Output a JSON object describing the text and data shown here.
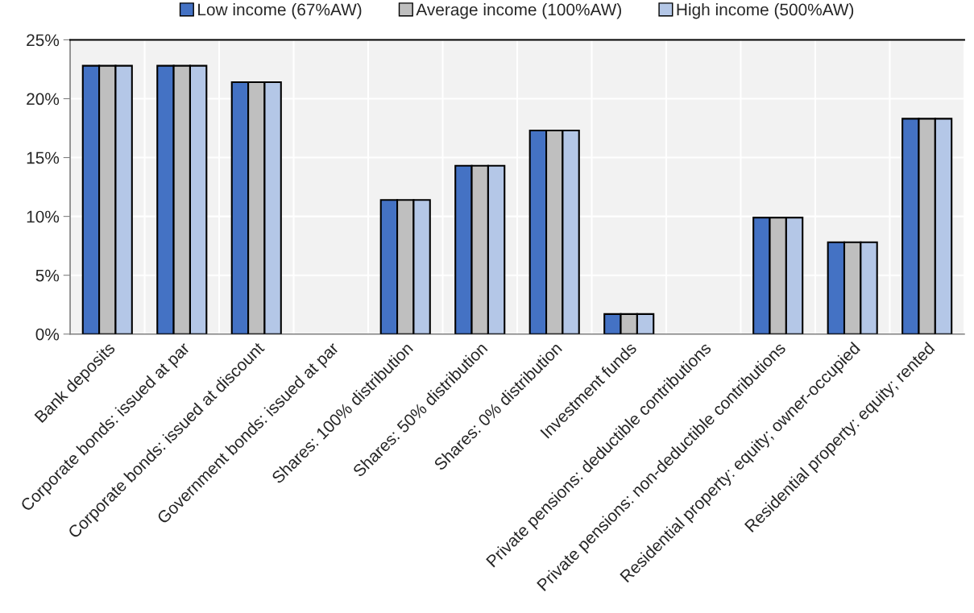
{
  "chart_data": {
    "type": "bar",
    "categories": [
      "Bank deposits",
      "Corporate bonds: issued at par",
      "Corporate bonds: issued at discount",
      "Government bonds: issued at par",
      "Shares: 100% distribution",
      "Shares: 50% distribution",
      "Shares: 0% distribution",
      "Investment funds",
      "Private pensions: deductible contributions",
      "Private pensions: non-deductible contributions",
      "Residential property: equity; owner-occupied",
      "Residential property: equity; rented"
    ],
    "series": [
      {
        "name": "Low income (67%AW)",
        "color": "#4472c4",
        "values": [
          22.8,
          22.8,
          21.4,
          0,
          11.4,
          14.3,
          17.3,
          1.7,
          0,
          9.9,
          7.8,
          18.3
        ]
      },
      {
        "name": "Average income (100%AW)",
        "color": "#bfbfbf",
        "values": [
          22.8,
          22.8,
          21.4,
          0,
          11.4,
          14.3,
          17.3,
          1.7,
          0,
          9.9,
          7.8,
          18.3
        ]
      },
      {
        "name": "High income (500%AW)",
        "color": "#b4c7e7",
        "values": [
          22.8,
          22.8,
          21.4,
          0,
          11.4,
          14.3,
          17.3,
          1.7,
          0,
          9.9,
          7.8,
          18.3
        ]
      }
    ],
    "ylim": [
      0,
      25
    ],
    "yticks": [
      {
        "value": 0,
        "label": "0%"
      },
      {
        "value": 5,
        "label": "5%"
      },
      {
        "value": 10,
        "label": "10%"
      },
      {
        "value": 15,
        "label": "15%"
      },
      {
        "value": 20,
        "label": "20%"
      },
      {
        "value": 25,
        "label": "25%"
      }
    ],
    "grid": true,
    "legend": "top"
  }
}
